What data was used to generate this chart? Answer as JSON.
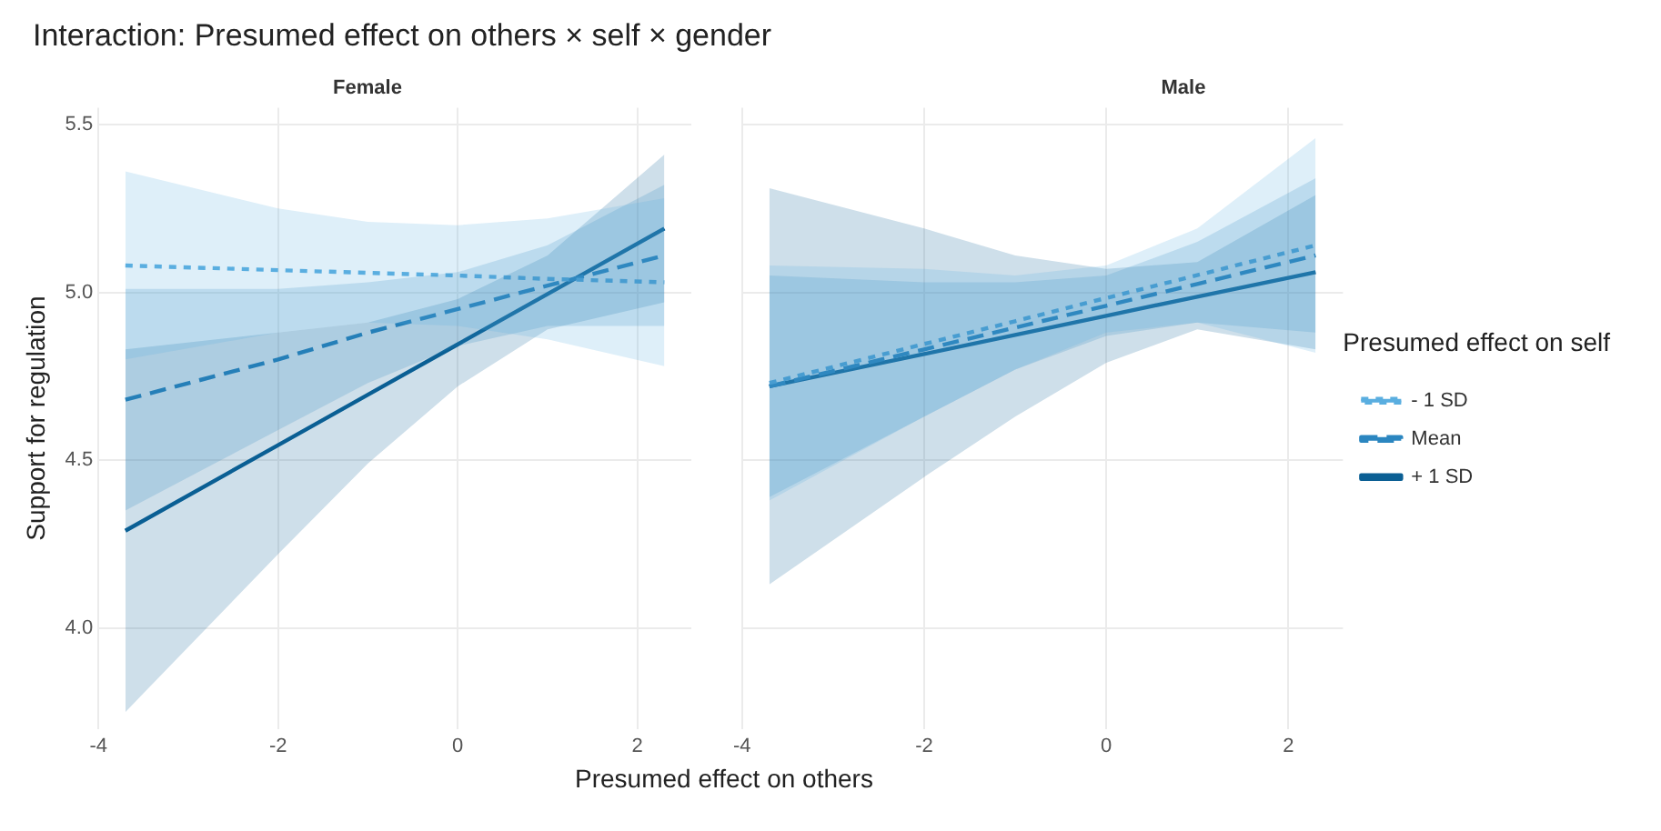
{
  "chart_data": [
    {
      "type": "line",
      "title": "Interaction: Presumed effect on others × self × gender",
      "subtitle": "Female",
      "xlabel": "Presumed effect on others",
      "ylabel": "Support for regulation",
      "xlim": [
        -4.0,
        2.6
      ],
      "xticks": [
        -4,
        -2,
        0,
        2
      ],
      "ylim": [
        3.7,
        5.55
      ],
      "yticks": [
        {
          "value": 4,
          "label": "4.0"
        },
        4.5,
        {
          "value": 5,
          "label": "5.0"
        },
        5.5
      ],
      "grid": true,
      "legend": false,
      "x": [
        -3.7,
        -2,
        -1,
        0,
        1,
        2.3
      ],
      "series": [
        {
          "color": "#5aaee0",
          "line_style": "dotted",
          "values": [
            5.08,
            5.066,
            5.058,
            5.05,
            5.04,
            5.03
          ],
          "lower": [
            4.8,
            4.88,
            4.91,
            4.9,
            4.86,
            4.78
          ],
          "upper": [
            5.36,
            5.25,
            5.21,
            5.2,
            5.22,
            5.28
          ]
        },
        {
          "color": "#2b86c0",
          "line_style": "dashed",
          "values": [
            4.68,
            4.8,
            4.88,
            4.95,
            5.02,
            5.11
          ],
          "lower": [
            4.35,
            4.59,
            4.73,
            4.84,
            4.9,
            4.9
          ],
          "upper": [
            5.01,
            5.01,
            5.03,
            5.06,
            5.14,
            5.32
          ]
        },
        {
          "color": "#0b5f94",
          "line_style": "solid",
          "values": [
            4.29,
            4.545,
            4.695,
            4.845,
            4.995,
            5.19
          ],
          "lower": [
            3.75,
            4.22,
            4.49,
            4.72,
            4.89,
            4.97
          ],
          "upper": [
            4.83,
            4.88,
            4.91,
            4.98,
            5.11,
            5.41
          ]
        }
      ]
    },
    {
      "type": "line",
      "subtitle": "Male",
      "xlim": [
        -4.0,
        2.6
      ],
      "xticks": [
        -4,
        -2,
        0,
        2
      ],
      "ylim": [
        3.7,
        5.55
      ],
      "yticks": [
        4.0,
        4.5,
        5.0,
        5.5
      ],
      "grid": true,
      "tick_labels": "x",
      "legend": "right",
      "legend_title": "Presumed effect on self",
      "x": [
        -3.7,
        -2,
        -1,
        0,
        1,
        2.3
      ],
      "series": [
        {
          "name": "- 1 SD",
          "color": "#5aaee0",
          "line_style": "dotted",
          "values": [
            4.73,
            4.846,
            4.914,
            4.983,
            5.051,
            5.14
          ],
          "lower": [
            4.38,
            4.63,
            4.77,
            4.88,
            4.91,
            4.82
          ],
          "upper": [
            5.08,
            5.07,
            5.05,
            5.08,
            5.19,
            5.46
          ]
        },
        {
          "name": "Mean",
          "color": "#2b86c0",
          "line_style": "dashed",
          "values": [
            4.72,
            4.83,
            4.895,
            4.96,
            5.025,
            5.11
          ],
          "lower": [
            4.39,
            4.63,
            4.77,
            4.87,
            4.91,
            4.88
          ],
          "upper": [
            5.05,
            5.03,
            5.03,
            5.05,
            5.15,
            5.34
          ]
        },
        {
          "name": "+ 1 SD",
          "color": "#0b5f94",
          "line_style": "solid",
          "values": [
            4.72,
            4.816,
            4.873,
            4.93,
            4.987,
            5.06
          ],
          "lower": [
            4.13,
            4.45,
            4.63,
            4.79,
            4.89,
            4.83
          ],
          "upper": [
            5.31,
            5.19,
            5.11,
            5.07,
            5.09,
            5.29
          ]
        }
      ]
    }
  ]
}
